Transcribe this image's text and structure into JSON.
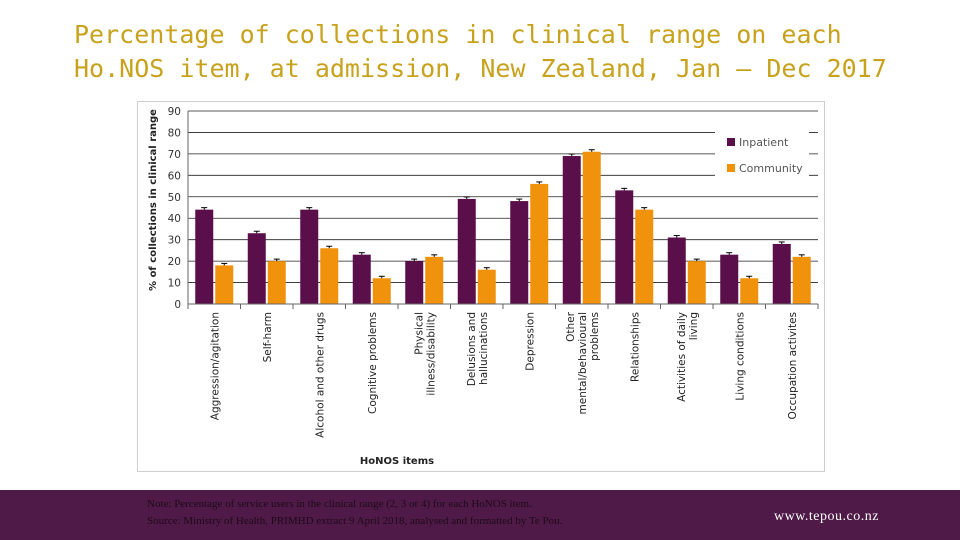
{
  "page": {
    "title": "Percentage of collections in clinical range on each Ho.NOS item, at admission, New Zealand, Jan – Dec 2017"
  },
  "chart_data": {
    "type": "bar",
    "ylabel": "% of collections in clinical range",
    "xlabel": "HoNOS items",
    "ylim": [
      0,
      90
    ],
    "yticks": [
      0,
      10,
      20,
      30,
      40,
      50,
      60,
      70,
      80,
      90
    ],
    "grid": true,
    "legend_position": "top-right",
    "categories": [
      "Aggression/agitation",
      "Self-harm",
      "Alcohol and other drugs",
      "Cognitive problems",
      "Physical illness/disability",
      "Delusions and hallucinations",
      "Depression",
      "Other mental/behavioural problems",
      "Relationships",
      "Activities of daily living",
      "Living conditions",
      "Occupation activites"
    ],
    "series": [
      {
        "name": "Inpatient",
        "color": "#5b0f4a",
        "values": [
          44,
          33,
          44,
          23,
          20,
          49,
          48,
          69,
          53,
          31,
          23,
          28
        ]
      },
      {
        "name": "Community",
        "color": "#f0920c",
        "values": [
          18,
          20,
          26,
          12,
          22,
          16,
          56,
          71,
          44,
          20,
          12,
          22
        ]
      }
    ],
    "error_bar_color": "#000000"
  },
  "footer": {
    "note": "Note: Percentage of service users in the clinical range (2, 3 or 4) for each HoNOS item.",
    "source": "Source: Ministry of Health, PRIMHD extract 9 April 2018, analysed and formatted by Te Pou.",
    "website": "www.tepou.co.nz",
    "background_color": "#4f1a47"
  }
}
